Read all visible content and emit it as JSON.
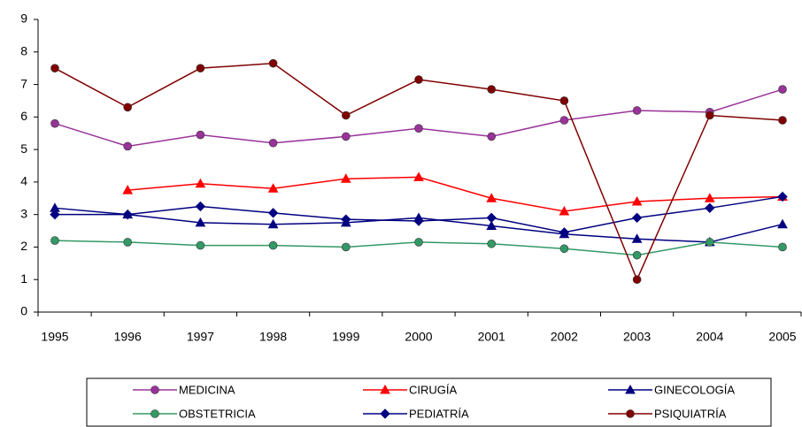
{
  "chart_data": {
    "type": "line",
    "categories": [
      "1995",
      "1996",
      "1997",
      "1998",
      "1999",
      "2000",
      "2001",
      "2002",
      "2003",
      "2004",
      "2005"
    ],
    "series": [
      {
        "name": "MEDICINA",
        "color": "#993399",
        "marker": "circle",
        "values": [
          5.8,
          5.1,
          5.45,
          5.2,
          5.4,
          5.65,
          5.4,
          5.9,
          6.2,
          6.15,
          6.85
        ]
      },
      {
        "name": "CIRUGÍA",
        "color": "#ff0000",
        "marker": "triangle",
        "values": [
          null,
          3.75,
          3.95,
          3.8,
          4.1,
          4.15,
          3.5,
          3.1,
          3.4,
          3.5,
          3.55
        ]
      },
      {
        "name": "GINECOLOGÍA",
        "color": "#000080",
        "marker": "triangle",
        "values": [
          3.2,
          3.0,
          2.75,
          2.7,
          2.75,
          2.9,
          2.65,
          2.4,
          2.25,
          2.15,
          2.7
        ]
      },
      {
        "name": "OBSTETRICIA",
        "color": "#339966",
        "marker": "circle",
        "values": [
          2.2,
          2.15,
          2.05,
          2.05,
          2.0,
          2.15,
          2.1,
          1.95,
          1.75,
          2.15,
          2.0
        ]
      },
      {
        "name": "PEDIATRÍA",
        "color": "#000080",
        "marker": "diamond",
        "values": [
          3.0,
          3.0,
          3.25,
          3.05,
          2.85,
          2.8,
          2.9,
          2.45,
          2.9,
          3.2,
          3.55
        ]
      },
      {
        "name": "PSIQUIATRÍA",
        "color": "#800000",
        "marker": "circle",
        "values": [
          7.5,
          6.3,
          7.5,
          7.65,
          6.05,
          7.15,
          6.85,
          6.5,
          1.0,
          6.05,
          5.9
        ]
      }
    ],
    "ylim": [
      0,
      9
    ],
    "yticks": [
      0,
      1,
      2,
      3,
      4,
      5,
      6,
      7,
      8,
      9
    ],
    "grid": false
  }
}
